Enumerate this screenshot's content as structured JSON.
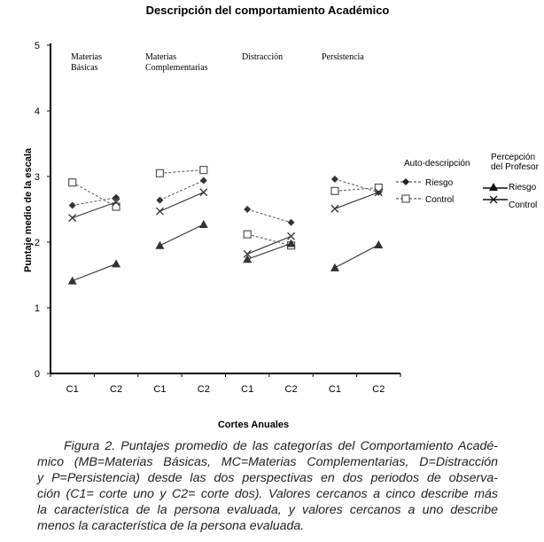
{
  "chart_data": {
    "type": "line",
    "title": "Descripción del comportamiento Académico",
    "xlabel": "Cortes Anuales",
    "ylabel": "Puntaje medio de la escala",
    "ylim": [
      0,
      5
    ],
    "yticks": [
      "0",
      "1",
      "2",
      "3",
      "4",
      "5"
    ],
    "categories": [
      "C1",
      "C2",
      "C1",
      "C2",
      "C1",
      "C2",
      "C1",
      "C2"
    ],
    "groups": [
      "Materias Básicas",
      "Materias Complementarias",
      "Distracción",
      "Persistencia"
    ],
    "group_label_lines": [
      [
        "Materias",
        "Básicas"
      ],
      [
        "Materias",
        "Complementarias"
      ],
      [
        "Distracción"
      ],
      [
        "Persistencia"
      ]
    ],
    "legend": {
      "auto_title": "Auto-descripción",
      "prof_title_lines": [
        "Percepción",
        "del Profesor"
      ],
      "riesgo": "Riesgo",
      "control": "Control"
    },
    "series": [
      {
        "name": "Auto-descripción Riesgo",
        "marker": "diamond",
        "dash": true,
        "color": "#333333",
        "values": [
          [
            2.56,
            2.68
          ],
          [
            2.64,
            2.94
          ],
          [
            2.5,
            2.3
          ],
          [
            2.96,
            2.76
          ]
        ]
      },
      {
        "name": "Auto-descripción Control",
        "marker": "square",
        "dash": true,
        "color": "#555555",
        "values": [
          [
            2.91,
            2.54
          ],
          [
            3.05,
            3.1
          ],
          [
            2.12,
            1.95
          ],
          [
            2.78,
            2.83
          ]
        ]
      },
      {
        "name": "Percepción del Profesor Riesgo",
        "marker": "triangle",
        "dash": false,
        "color": "#333333",
        "values": [
          [
            1.41,
            1.67
          ],
          [
            1.95,
            2.27
          ],
          [
            1.74,
            1.98
          ],
          [
            1.61,
            1.96
          ]
        ]
      },
      {
        "name": "Percepción del Profesor Control",
        "marker": "x",
        "dash": false,
        "color": "#333333",
        "values": [
          [
            2.37,
            2.61
          ],
          [
            2.47,
            2.76
          ],
          [
            1.82,
            2.09
          ],
          [
            2.51,
            2.76
          ]
        ]
      }
    ]
  },
  "caption_lines": [
    "Figura 2. Puntajes promedio de las categorías del Comportamiento Acadé-",
    "mico (MB=Materias Básicas, MC=Materias Complementarias, D=Distracción",
    "y P=Persistencia) desde las dos perspectivas en dos periodos de observa-",
    "ción (C1= corte uno y C2= corte dos). Valores cercanos a cinco describe más",
    "la característica de la persona evaluada, y valores cercanos a uno describe",
    "menos la característica de la persona evaluada."
  ]
}
